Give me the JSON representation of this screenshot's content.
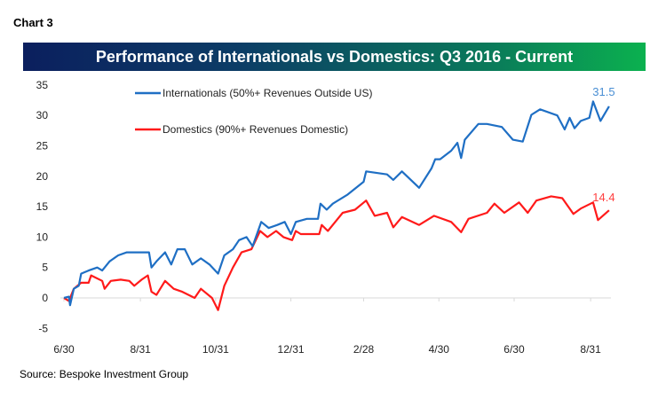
{
  "header": {
    "chart_label": "Chart 3"
  },
  "footer": {
    "source": "Source: Bespoke Investment Group"
  },
  "colors": {
    "international": "#1f6fc4",
    "domestic": "#ff1a1a",
    "international_label": "#4a8fd4",
    "domestic_label": "#ff4040",
    "banner_start": "#0b1f5e",
    "banner_end": "#0bb14f"
  },
  "chart_data": {
    "type": "line",
    "title": "Performance of Internationals vs Domestics: Q3 2016 - Current",
    "xlabel": "",
    "ylabel": "",
    "ylim": [
      -5,
      35
    ],
    "yticks": [
      35,
      30,
      25,
      20,
      15,
      10,
      5,
      0,
      -5
    ],
    "xticks": [
      {
        "date": "2016-06-30",
        "label": "6/30"
      },
      {
        "date": "2016-08-31",
        "label": "8/31"
      },
      {
        "date": "2016-10-31",
        "label": "10/31"
      },
      {
        "date": "2016-12-31",
        "label": "12/31"
      },
      {
        "date": "2017-02-28",
        "label": "2/28"
      },
      {
        "date": "2017-04-30",
        "label": "4/30"
      },
      {
        "date": "2017-06-30",
        "label": "6/30"
      },
      {
        "date": "2017-08-31",
        "label": "8/31"
      }
    ],
    "grid": false,
    "legend_placement": "top-left",
    "series": [
      {
        "name": "Internationals (50%+ Revenues Outside US)",
        "end_label": "31.5",
        "points": [
          [
            "2016-06-30",
            0
          ],
          [
            "2016-07-04",
            0.2
          ],
          [
            "2016-07-05",
            -1.2
          ],
          [
            "2016-07-08",
            1.5
          ],
          [
            "2016-07-12",
            2
          ],
          [
            "2016-07-14",
            4
          ],
          [
            "2016-07-20",
            4.5
          ],
          [
            "2016-07-27",
            5
          ],
          [
            "2016-07-31",
            4.5
          ],
          [
            "2016-08-06",
            6
          ],
          [
            "2016-08-13",
            7
          ],
          [
            "2016-08-20",
            7.5
          ],
          [
            "2016-08-27",
            7.5
          ],
          [
            "2016-09-01",
            7.5
          ],
          [
            "2016-09-07",
            7.5
          ],
          [
            "2016-09-09",
            5
          ],
          [
            "2016-09-13",
            6
          ],
          [
            "2016-09-20",
            7.5
          ],
          [
            "2016-09-25",
            5.5
          ],
          [
            "2016-09-30",
            8
          ],
          [
            "2016-10-06",
            8
          ],
          [
            "2016-10-12",
            5.5
          ],
          [
            "2016-10-19",
            6.5
          ],
          [
            "2016-10-26",
            5.5
          ],
          [
            "2016-11-02",
            4
          ],
          [
            "2016-11-07",
            7
          ],
          [
            "2016-11-14",
            8
          ],
          [
            "2016-11-19",
            9.5
          ],
          [
            "2016-11-25",
            10
          ],
          [
            "2016-11-30",
            8.5
          ],
          [
            "2016-12-07",
            12.5
          ],
          [
            "2016-12-13",
            11.5
          ],
          [
            "2016-12-20",
            12
          ],
          [
            "2016-12-26",
            12.5
          ],
          [
            "2016-12-31",
            10.5
          ],
          [
            "2017-01-04",
            12.5
          ],
          [
            "2017-01-13",
            13
          ],
          [
            "2017-01-22",
            13
          ],
          [
            "2017-01-24",
            15.5
          ],
          [
            "2017-01-29",
            14.5
          ],
          [
            "2017-02-03",
            15.5
          ],
          [
            "2017-02-15",
            17
          ],
          [
            "2017-02-28",
            19.1
          ],
          [
            "2017-03-02",
            20.8
          ],
          [
            "2017-03-19",
            20.3
          ],
          [
            "2017-03-24",
            19.4
          ],
          [
            "2017-03-31",
            20.8
          ],
          [
            "2017-04-14",
            18.1
          ],
          [
            "2017-04-24",
            21.3
          ],
          [
            "2017-04-27",
            22.8
          ],
          [
            "2017-05-01",
            22.8
          ],
          [
            "2017-05-10",
            24.2
          ],
          [
            "2017-05-15",
            25.5
          ],
          [
            "2017-05-18",
            23
          ],
          [
            "2017-05-21",
            26
          ],
          [
            "2017-06-01",
            28.6
          ],
          [
            "2017-06-08",
            28.6
          ],
          [
            "2017-06-20",
            28.1
          ],
          [
            "2017-06-29",
            26
          ],
          [
            "2017-07-07",
            25.7
          ],
          [
            "2017-07-14",
            30.1
          ],
          [
            "2017-07-21",
            31
          ],
          [
            "2017-08-04",
            30
          ],
          [
            "2017-08-10",
            27.7
          ],
          [
            "2017-08-14",
            29.6
          ],
          [
            "2017-08-18",
            27.9
          ],
          [
            "2017-08-23",
            29.1
          ],
          [
            "2017-08-30",
            29.6
          ],
          [
            "2017-09-02",
            32.3
          ],
          [
            "2017-09-08",
            29.1
          ],
          [
            "2017-09-15",
            31.5
          ]
        ]
      },
      {
        "name": "Domestics (90%+ Revenues Domestic)",
        "end_label": "14.4",
        "points": [
          [
            "2016-06-30",
            0
          ],
          [
            "2016-07-04",
            -0.5
          ],
          [
            "2016-07-08",
            1.5
          ],
          [
            "2016-07-14",
            2.5
          ],
          [
            "2016-07-20",
            2.5
          ],
          [
            "2016-07-22",
            3.7
          ],
          [
            "2016-07-31",
            2.8
          ],
          [
            "2016-08-02",
            1.5
          ],
          [
            "2016-08-07",
            2.8
          ],
          [
            "2016-08-15",
            3
          ],
          [
            "2016-08-22",
            2.8
          ],
          [
            "2016-08-26",
            2
          ],
          [
            "2016-09-01",
            3
          ],
          [
            "2016-09-06",
            3.7
          ],
          [
            "2016-09-09",
            1
          ],
          [
            "2016-09-13",
            0.5
          ],
          [
            "2016-09-20",
            2.8
          ],
          [
            "2016-09-27",
            1.5
          ],
          [
            "2016-10-04",
            1
          ],
          [
            "2016-10-14",
            0
          ],
          [
            "2016-10-19",
            1.5
          ],
          [
            "2016-10-28",
            0
          ],
          [
            "2016-11-02",
            -2
          ],
          [
            "2016-11-07",
            2
          ],
          [
            "2016-11-14",
            5
          ],
          [
            "2016-11-21",
            7.5
          ],
          [
            "2016-11-29",
            8
          ],
          [
            "2016-12-06",
            11
          ],
          [
            "2016-12-12",
            10
          ],
          [
            "2016-12-19",
            11
          ],
          [
            "2016-12-25",
            10
          ],
          [
            "2017-01-01",
            9.5
          ],
          [
            "2017-01-04",
            11
          ],
          [
            "2017-01-08",
            10.5
          ],
          [
            "2017-01-18",
            10.5
          ],
          [
            "2017-01-23",
            10.5
          ],
          [
            "2017-01-25",
            12
          ],
          [
            "2017-01-30",
            11
          ],
          [
            "2017-02-11",
            14
          ],
          [
            "2017-02-21",
            14.5
          ],
          [
            "2017-03-02",
            16
          ],
          [
            "2017-03-09",
            13.5
          ],
          [
            "2017-03-19",
            14
          ],
          [
            "2017-03-24",
            11.6
          ],
          [
            "2017-03-31",
            13.3
          ],
          [
            "2017-04-14",
            12
          ],
          [
            "2017-04-26",
            13.5
          ],
          [
            "2017-05-10",
            12.5
          ],
          [
            "2017-05-18",
            10.8
          ],
          [
            "2017-05-24",
            13
          ],
          [
            "2017-06-08",
            14
          ],
          [
            "2017-06-14",
            15.5
          ],
          [
            "2017-06-22",
            14
          ],
          [
            "2017-07-04",
            15.7
          ],
          [
            "2017-07-11",
            14
          ],
          [
            "2017-07-18",
            16
          ],
          [
            "2017-07-30",
            16.7
          ],
          [
            "2017-08-08",
            16.4
          ],
          [
            "2017-08-14",
            14.7
          ],
          [
            "2017-08-17",
            13.8
          ],
          [
            "2017-08-23",
            14.7
          ],
          [
            "2017-09-02",
            15.7
          ],
          [
            "2017-09-06",
            12.8
          ],
          [
            "2017-09-15",
            14.4
          ]
        ]
      }
    ]
  }
}
